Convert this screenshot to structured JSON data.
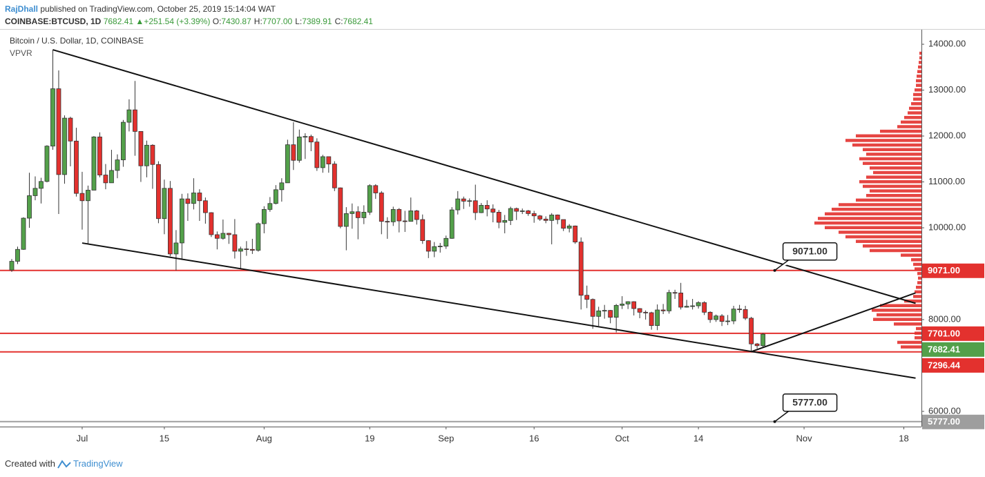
{
  "header": {
    "author": "RajDhall",
    "published": "published on TradingView.com, October 25, 2019 15:14:04 WAT",
    "symbol": "COINBASE:BTCUSD, 1D",
    "last": "7682.41",
    "change": "+251.54 (+3.39%)",
    "ohlc": [
      {
        "key": "O:",
        "value": "7430.87"
      },
      {
        "key": "H:",
        "value": "7707.00"
      },
      {
        "key": "L:",
        "value": "7389.91"
      },
      {
        "key": "C:",
        "value": "7682.41"
      }
    ]
  },
  "footer": {
    "created": "Created with",
    "brand": "TradingView"
  },
  "chart_data": {
    "type": "candlestick",
    "title": "Bitcoin / U.S. Dollar, 1D, COINBASE",
    "indicator": "VPVR",
    "up_color": "#53a04a",
    "down_color": "#e3312e",
    "xlim": [
      "2019-06-17",
      "2019-11-21"
    ],
    "ylim": [
      5668,
      14317
    ],
    "xticks": [
      {
        "value": "2019-07-01",
        "label": "Jul"
      },
      {
        "value": "2019-07-15",
        "label": "15"
      },
      {
        "value": "2019-08-01",
        "label": "Aug"
      },
      {
        "value": "2019-08-19",
        "label": "19"
      },
      {
        "value": "2019-09-01",
        "label": "Sep"
      },
      {
        "value": "2019-09-16",
        "label": "16"
      },
      {
        "value": "2019-10-01",
        "label": "Oct"
      },
      {
        "value": "2019-10-14",
        "label": "14"
      },
      {
        "value": "2019-11-01",
        "label": "Nov"
      },
      {
        "value": "2019-11-18",
        "label": "18"
      }
    ],
    "yticks": [
      {
        "value": 6000,
        "label": "6000.00"
      },
      {
        "value": 8000,
        "label": "8000.00"
      },
      {
        "value": 10000,
        "label": "10000.00"
      },
      {
        "value": 11000,
        "label": "11000.00"
      },
      {
        "value": 12000,
        "label": "12000.00"
      },
      {
        "value": 13000,
        "label": "13000.00"
      },
      {
        "value": 14000,
        "label": "14000.00"
      }
    ],
    "x": [
      "2019-06-19",
      "2019-06-20",
      "2019-06-21",
      "2019-06-22",
      "2019-06-23",
      "2019-06-24",
      "2019-06-25",
      "2019-06-26",
      "2019-06-27",
      "2019-06-28",
      "2019-06-29",
      "2019-06-30",
      "2019-07-01",
      "2019-07-02",
      "2019-07-03",
      "2019-07-04",
      "2019-07-05",
      "2019-07-06",
      "2019-07-07",
      "2019-07-08",
      "2019-07-09",
      "2019-07-10",
      "2019-07-11",
      "2019-07-12",
      "2019-07-13",
      "2019-07-14",
      "2019-07-15",
      "2019-07-16",
      "2019-07-17",
      "2019-07-18",
      "2019-07-19",
      "2019-07-20",
      "2019-07-21",
      "2019-07-22",
      "2019-07-23",
      "2019-07-24",
      "2019-07-25",
      "2019-07-26",
      "2019-07-27",
      "2019-07-28",
      "2019-07-29",
      "2019-07-30",
      "2019-07-31",
      "2019-08-01",
      "2019-08-02",
      "2019-08-03",
      "2019-08-04",
      "2019-08-05",
      "2019-08-06",
      "2019-08-07",
      "2019-08-08",
      "2019-08-09",
      "2019-08-10",
      "2019-08-11",
      "2019-08-12",
      "2019-08-13",
      "2019-08-14",
      "2019-08-15",
      "2019-08-16",
      "2019-08-17",
      "2019-08-18",
      "2019-08-19",
      "2019-08-20",
      "2019-08-21",
      "2019-08-22",
      "2019-08-23",
      "2019-08-24",
      "2019-08-25",
      "2019-08-26",
      "2019-08-27",
      "2019-08-28",
      "2019-08-29",
      "2019-08-30",
      "2019-08-31",
      "2019-09-01",
      "2019-09-02",
      "2019-09-03",
      "2019-09-04",
      "2019-09-05",
      "2019-09-06",
      "2019-09-07",
      "2019-09-08",
      "2019-09-09",
      "2019-09-10",
      "2019-09-11",
      "2019-09-12",
      "2019-09-13",
      "2019-09-14",
      "2019-09-15",
      "2019-09-16",
      "2019-09-17",
      "2019-09-18",
      "2019-09-19",
      "2019-09-20",
      "2019-09-21",
      "2019-09-22",
      "2019-09-23",
      "2019-09-24",
      "2019-09-25",
      "2019-09-26",
      "2019-09-27",
      "2019-09-28",
      "2019-09-29",
      "2019-09-30",
      "2019-10-01",
      "2019-10-02",
      "2019-10-03",
      "2019-10-04",
      "2019-10-05",
      "2019-10-06",
      "2019-10-07",
      "2019-10-08",
      "2019-10-09",
      "2019-10-10",
      "2019-10-11",
      "2019-10-12",
      "2019-10-13",
      "2019-10-14",
      "2019-10-15",
      "2019-10-16",
      "2019-10-17",
      "2019-10-18",
      "2019-10-19",
      "2019-10-20",
      "2019-10-21",
      "2019-10-22",
      "2019-10-23",
      "2019-10-24",
      "2019-10-25"
    ],
    "open": [
      9080,
      9270,
      9530,
      10210,
      10700,
      10860,
      11010,
      11780,
      13030,
      11160,
      12390,
      11890,
      10750,
      10590,
      10820,
      11980,
      11150,
      10980,
      11250,
      11480,
      12300,
      12570,
      12100,
      11350,
      11800,
      11380,
      10200,
      10860,
      9430,
      9670,
      10630,
      10530,
      10760,
      10590,
      10330,
      9850,
      9770,
      9880,
      9850,
      9490,
      9540,
      9530,
      9510,
      10090,
      10400,
      10530,
      10830,
      10980,
      11810,
      11470,
      11980,
      11990,
      11870,
      11310,
      11550,
      11390,
      10870,
      10030,
      10310,
      10350,
      10220,
      10340,
      10920,
      10760,
      10140,
      10130,
      10400,
      10150,
      10140,
      10370,
      10180,
      9720,
      9490,
      9590,
      9600,
      9770,
      10390,
      10630,
      10580,
      10590,
      10330,
      10490,
      10410,
      10340,
      10120,
      10160,
      10420,
      10360,
      10370,
      10310,
      10260,
      10190,
      10160,
      10280,
      10180,
      9990,
      10040,
      9690,
      8530,
      8440,
      8070,
      8190,
      8200,
      8050,
      8310,
      8340,
      8390,
      8240,
      8160,
      8150,
      7870,
      8210,
      8190,
      8590,
      8580,
      8270,
      8290,
      8300,
      8370,
      8160,
      8000,
      8080,
      7960,
      7970,
      8230,
      8220,
      8030,
      7470,
      7430.87
    ],
    "high": [
      9320,
      9590,
      10230,
      11200,
      11120,
      11090,
      11800,
      13880,
      13430,
      12450,
      12420,
      12180,
      11220,
      10920,
      12000,
      12080,
      11390,
      11700,
      11600,
      12350,
      12800,
      13200,
      12100,
      11900,
      11820,
      11450,
      11050,
      11020,
      9950,
      10740,
      10750,
      11080,
      10840,
      10660,
      10340,
      9920,
      10180,
      9890,
      10190,
      9590,
      9710,
      9760,
      10120,
      10470,
      10670,
      10930,
      11080,
      11920,
      12300,
      12140,
      12060,
      12030,
      11950,
      11590,
      11550,
      11450,
      10880,
      10450,
      10530,
      10470,
      10490,
      10950,
      10950,
      10800,
      10230,
      10460,
      10430,
      10370,
      10660,
      10390,
      10290,
      9730,
      9690,
      9670,
      9830,
      10450,
      10800,
      10680,
      10640,
      10940,
      10540,
      10600,
      10510,
      10390,
      10280,
      10460,
      10440,
      10420,
      10390,
      10370,
      10280,
      10250,
      10320,
      10290,
      10180,
      10080,
      10050,
      9790,
      8740,
      8460,
      8280,
      8320,
      8210,
      8340,
      8510,
      8400,
      8400,
      8250,
      8200,
      8170,
      8330,
      8340,
      8650,
      8650,
      8800,
      8430,
      8450,
      8400,
      8400,
      8180,
      8110,
      8120,
      8100,
      8300,
      8320,
      8300,
      8060,
      7490,
      7707
    ],
    "low": [
      9040,
      9210,
      9520,
      10000,
      10600,
      10530,
      10990,
      11700,
      10300,
      10960,
      11340,
      10680,
      9960,
      9650,
      10820,
      11100,
      10840,
      10980,
      11080,
      11330,
      12100,
      11570,
      11000,
      11100,
      10850,
      10100,
      9860,
      9380,
      9070,
      9300,
      10150,
      10400,
      10150,
      10090,
      9800,
      9530,
      9740,
      9650,
      9330,
      9120,
      9390,
      9430,
      9480,
      9880,
      10350,
      10510,
      10570,
      10980,
      11260,
      11420,
      11500,
      11670,
      11240,
      11200,
      11200,
      10800,
      9990,
      9510,
      9980,
      9750,
      10080,
      10280,
      10630,
      9860,
      9760,
      10040,
      9900,
      9910,
      10140,
      10070,
      9650,
      9340,
      9360,
      9460,
      9540,
      9760,
      10290,
      10410,
      10460,
      10170,
      10320,
      10250,
      10120,
      9990,
      9880,
      10060,
      10170,
      10300,
      10260,
      10110,
      10150,
      10100,
      9640,
      10080,
      9930,
      9900,
      9650,
      8220,
      8250,
      7800,
      7860,
      8020,
      7920,
      7720,
      8230,
      8230,
      8090,
      8030,
      8000,
      7780,
      7770,
      8120,
      8130,
      8450,
      8220,
      8260,
      8220,
      8240,
      8100,
      7930,
      7950,
      7860,
      7880,
      7900,
      8150,
      7990,
      7300,
      7370,
      7389.91
    ],
    "close": [
      9270,
      9530,
      10210,
      10700,
      10860,
      11010,
      11780,
      13030,
      11160,
      12390,
      11890,
      10750,
      10590,
      10820,
      11980,
      11150,
      10980,
      11250,
      11480,
      12300,
      12570,
      12100,
      11350,
      11800,
      11380,
      10200,
      10860,
      9430,
      9670,
      10630,
      10530,
      10760,
      10590,
      10330,
      9850,
      9770,
      9880,
      9850,
      9490,
      9540,
      9530,
      9510,
      10090,
      10400,
      10530,
      10830,
      10980,
      11810,
      11470,
      11980,
      11990,
      11870,
      11310,
      11550,
      11390,
      10870,
      10030,
      10310,
      10350,
      10220,
      10340,
      10920,
      10760,
      10140,
      10130,
      10400,
      10150,
      10140,
      10370,
      10180,
      9720,
      9490,
      9590,
      9600,
      9770,
      10390,
      10630,
      10580,
      10590,
      10330,
      10490,
      10410,
      10340,
      10120,
      10160,
      10420,
      10360,
      10370,
      10310,
      10260,
      10190,
      10160,
      10280,
      10180,
      9990,
      10040,
      9690,
      8530,
      8440,
      8070,
      8190,
      8200,
      8050,
      8310,
      8340,
      8390,
      8240,
      8160,
      8150,
      7870,
      8210,
      8190,
      8590,
      8580,
      8270,
      8290,
      8300,
      8370,
      8160,
      8000,
      8080,
      7960,
      7970,
      8230,
      8220,
      8030,
      7470,
      7430.87,
      7682.41
    ],
    "levels": [
      {
        "value": 9071,
        "label": "9071.00",
        "color": "#e3312e"
      },
      {
        "value": 7701,
        "label": "7701.00",
        "color": "#e3312e"
      },
      {
        "value": 7682.41,
        "label": "7682.41",
        "color": "#53a04a",
        "line": false
      },
      {
        "value": 7296.44,
        "label": "7296.44",
        "color": "#e3312e"
      },
      {
        "value": 5777,
        "label": "5777.00",
        "color": "#9e9e9e"
      }
    ],
    "callouts": [
      {
        "x": "2019-10-27",
        "value": 9071,
        "label": "9071.00"
      },
      {
        "x": "2019-10-27",
        "value": 5777,
        "label": "5777.00"
      }
    ],
    "trendlines": [
      {
        "x": [
          "2019-06-26",
          "2019-11-20"
        ],
        "values": [
          13880,
          8355
        ]
      },
      {
        "x": [
          "2019-07-01",
          "2019-11-20"
        ],
        "values": [
          9668,
          6725
        ]
      },
      {
        "x": [
          "2019-10-23",
          "2019-11-20"
        ],
        "values": [
          7300,
          8581
        ]
      }
    ],
    "vpvr": {
      "color": "#e3312e",
      "prices": [
        7400,
        7500,
        7600,
        7700,
        7800,
        7900,
        8000,
        8100,
        8200,
        8300,
        8400,
        8500,
        8600,
        8700,
        8800,
        8900,
        9000,
        9100,
        9200,
        9300,
        9400,
        9500,
        9600,
        9700,
        9800,
        9900,
        10000,
        10100,
        10200,
        10300,
        10400,
        10500,
        10600,
        10700,
        10800,
        10900,
        11000,
        11100,
        11200,
        11300,
        11400,
        11500,
        11600,
        11700,
        11800,
        11900,
        12000,
        12100,
        12200,
        12300,
        12400,
        12500,
        12600,
        12700,
        12800,
        12900,
        13000,
        13100,
        13200,
        13300,
        13400,
        13500,
        13600,
        13700,
        13800
      ],
      "volumes": [
        30,
        35,
        10,
        10,
        8,
        40,
        70,
        65,
        72,
        60,
        25,
        12,
        10,
        8,
        6,
        5,
        6,
        10,
        12,
        15,
        30,
        75,
        85,
        95,
        110,
        120,
        140,
        155,
        150,
        140,
        130,
        120,
        95,
        80,
        75,
        85,
        90,
        80,
        70,
        75,
        85,
        90,
        80,
        85,
        100,
        110,
        95,
        60,
        35,
        30,
        25,
        20,
        18,
        15,
        12,
        12,
        10,
        8,
        8,
        7,
        6,
        5,
        4,
        3,
        3
      ]
    }
  }
}
